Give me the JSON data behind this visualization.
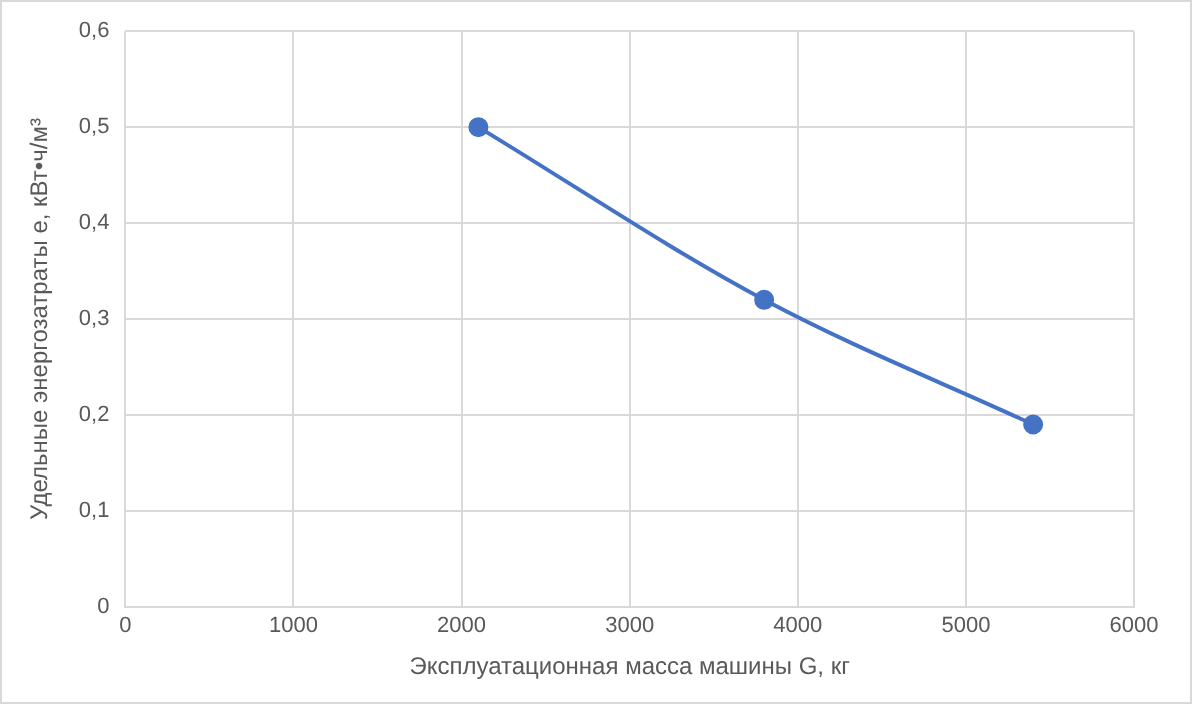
{
  "chart_data": {
    "type": "line",
    "xlabel": "Эксплуатационная масса машины G, кг",
    "ylabel": "Удельные энергозатраты e, кВт•ч/м³",
    "x": [
      2100,
      3800,
      5400
    ],
    "series": [
      {
        "color": "#4472c4",
        "values": [
          0.5,
          0.32,
          0.19
        ]
      }
    ],
    "xlim": [
      0,
      6000
    ],
    "xticks": [
      0,
      1000,
      2000,
      3000,
      4000,
      5000,
      6000
    ],
    "ylim": [
      0,
      0.6
    ],
    "yticks": [
      {
        "value": 0,
        "label": "0"
      },
      {
        "value": 0.1,
        "label": "0,1"
      },
      {
        "value": 0.2,
        "label": "0,2"
      },
      {
        "value": 0.3,
        "label": "0,3"
      },
      {
        "value": 0.4,
        "label": "0,4"
      },
      {
        "value": 0.5,
        "label": "0,5"
      },
      {
        "value": 0.6,
        "label": "0,6"
      }
    ],
    "grid": true,
    "marker": "circle",
    "line_style": "solid",
    "legend": false
  }
}
